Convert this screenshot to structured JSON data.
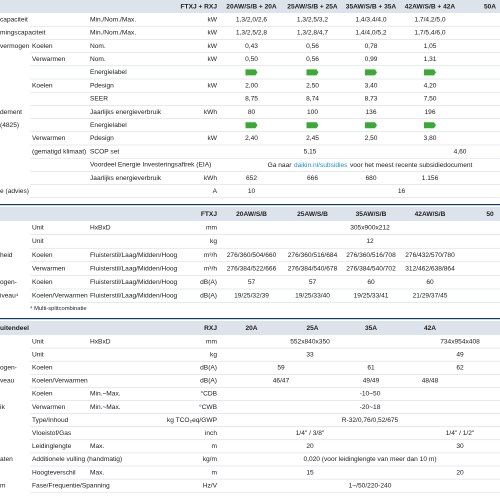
{
  "sections": [
    {
      "header": {
        "label": "FTXJ + RXJ",
        "values": [
          "20AW/S/B + 20A",
          "25AW/S/B + 25A",
          "35AW/S/B + 35A",
          "42AW/S/B + 42A",
          "50A"
        ]
      },
      "rows": [
        {
          "group": "capaciteit",
          "spec": "Min./Nom./Max.",
          "unit": "kW",
          "values": [
            "1,3/2,0/2,6",
            "1,3/2,5/3,2",
            "1,4/3,4/4,0",
            "1,7/4,2/5,0"
          ]
        },
        {
          "group": "mingscapaciteit",
          "spec": "Min./Nom./Max.",
          "unit": "kW",
          "values": [
            "1,3/2,5/2,8",
            "1,3/2,8/4,7",
            "1,4/4,0/5,2",
            "1,7/5,4/6,0"
          ]
        },
        {
          "group": "vermogen",
          "label": "Koelen",
          "spec": "Nom.",
          "unit": "kW",
          "values": [
            "0,43",
            "0,56",
            "0,78",
            "1,05"
          ]
        },
        {
          "label": "Verwarmen",
          "spec": "Nom.",
          "unit": "kW",
          "values": [
            "0,50",
            "0,56",
            "0,99",
            "1,31"
          ]
        },
        {
          "spec": "Energielabel"
        },
        {
          "label": "Koelen",
          "spec": "Pdesign",
          "unit": "kW",
          "values": [
            "2,00",
            "2,50",
            "3,40",
            "4,20"
          ]
        },
        {
          "spec": "SEER",
          "values": [
            "8,75",
            "8,74",
            "8,73",
            "7,50"
          ]
        },
        {
          "group": "dement",
          "spec": "Jaarlijks energieverbruik",
          "unit": "kWh",
          "values": [
            "80",
            "100",
            "136",
            "196"
          ]
        },
        {
          "group": "(4825)",
          "spec": "Energielabel"
        },
        {
          "label": "Verwarmen",
          "spec": "Pdesign",
          "unit": "kW",
          "values": [
            "2,40",
            "2,45",
            "2,50",
            "3,80"
          ]
        },
        {
          "label": "(gematigd klimaat)",
          "spec": "SCOP set",
          "values": [
            "5,15",
            null,
            null,
            "4,60",
            null
          ]
        },
        {
          "spec": "Voordeel Energie Investeringsaftrek (EIA)",
          "values": [
            [
              "Ga naar",
              "daikin.nl/subsidies",
              "voor het meest recente subsidiedocument"
            ],
            null,
            null,
            null,
            null
          ]
        },
        {
          "spec": "Jaarlijks energieverbruik",
          "unit": "kWh",
          "values": [
            "652",
            "666",
            "680",
            "1.156"
          ]
        },
        {
          "group": "e (advies)",
          "unit": "A",
          "values": [
            "10",
            "16",
            null,
            null,
            null
          ]
        }
      ]
    },
    {
      "header": {
        "label": "FTXJ",
        "values": [
          "20AW/S/B",
          "25AW/S/B",
          "35AW/S/B",
          "42AW/S/B",
          "50"
        ]
      },
      "rows": [
        {
          "label": "Unit",
          "spec": "HxBxD",
          "unit": "mm",
          "values": [
            "305x900x212",
            null,
            null,
            null,
            null
          ]
        },
        {
          "label": "Unit",
          "unit": "kg",
          "values": [
            "12",
            null,
            null,
            null,
            null
          ]
        },
        {
          "group": "heid",
          "label": "Koelen",
          "spec": "Fluisterstil/Laag/Midden/Hoog",
          "unit": "m³/h",
          "values": [
            "276/360/504/660",
            "276/360/516/684",
            "276/360/516/708",
            "276/432/570/780"
          ]
        },
        {
          "label": "Verwarmen",
          "spec": "Fluisterstil/Laag/Midden/Hoog",
          "unit": "m³/h",
          "values": [
            "276/384/522/666",
            "276/384/540/678",
            "276/384/540/702",
            "312/462/638/864"
          ]
        },
        {
          "group": "ogen-",
          "label": "Koelen",
          "spec": "Fluisterstil/Laag/Midden/Hoog",
          "unit": "dB(A)",
          "values": [
            "57",
            "57",
            "60",
            "60"
          ]
        },
        {
          "group": "iveau⁴",
          "label": "Koelen/Verwarmen",
          "spec": "Fluisterstil/Laag/Midden/Hoog",
          "unit": "dB(A)",
          "values": [
            "19/25/32/39",
            "19/25/33/40",
            "19/25/33/41",
            "21/29/37/45"
          ]
        }
      ],
      "note": "⁴ Multi-splitcombinatie"
    },
    {
      "header": {
        "group": "uitendeel",
        "label": "RXJ",
        "values": [
          "20A",
          "25A",
          "35A",
          "42A"
        ]
      },
      "rows": [
        {
          "label": "Unit",
          "spec": "HxBxD",
          "unit": "mm",
          "values": [
            "552x840x350",
            null,
            null,
            "734x954x408",
            null
          ]
        },
        {
          "label": "Unit",
          "unit": "kg",
          "values": [
            "33",
            null,
            null,
            "49",
            null
          ]
        },
        {
          "group": "ogen-",
          "label": "Koelen",
          "unit": "dB(A)",
          "values": [
            "59",
            null,
            "61",
            "62",
            null
          ]
        },
        {
          "group": "veau",
          "label": "Koelen/Verwarmen",
          "unit": "dB(A)",
          "values": [
            "46/47",
            null,
            "49/49",
            "48/48"
          ]
        },
        {
          "label": "Koelen",
          "spec": "Min.~Max.",
          "unit": "°CDB",
          "values": [
            "-10~50",
            null,
            null,
            null,
            null
          ]
        },
        {
          "group": "ik",
          "label": "Verwarmen",
          "spec": "Min.~Max.",
          "unit": "°CWB",
          "values": [
            "-20~18",
            null,
            null,
            null,
            null
          ]
        },
        {
          "label": "Type/Inhoud",
          "unit": "kg TCO₂eq/GWP",
          "values": [
            "R-32/0,76/0,52/675",
            null,
            null,
            null,
            null
          ]
        },
        {
          "label": "Vloeistof/Gas",
          "unit": "inch",
          "values": [
            "1/4\" / 3/8\"",
            null,
            null,
            "1/4\" / 1/2\"",
            null
          ]
        },
        {
          "label": "Leidinglengte",
          "spec": "Max.",
          "unit": "m",
          "values": [
            "20",
            null,
            null,
            "30",
            null
          ]
        },
        {
          "group": "aten",
          "label": "Additionele vulling (handmatig)",
          "unit": "kg/m",
          "values": [
            "0,020 (voor leidinglengte van meer dan 10 m)",
            null,
            null,
            null,
            null
          ]
        },
        {
          "label": "Hoogteverschil",
          "spec": "Max.",
          "unit": "m",
          "values": [
            "15",
            null,
            null,
            "20",
            null
          ]
        },
        {
          "group": "m",
          "label": "Fase/Frequentie/Spanning",
          "unit": "Hz/V",
          "values": [
            "1~/50/220-240",
            null,
            null,
            null,
            null
          ]
        }
      ]
    }
  ]
}
